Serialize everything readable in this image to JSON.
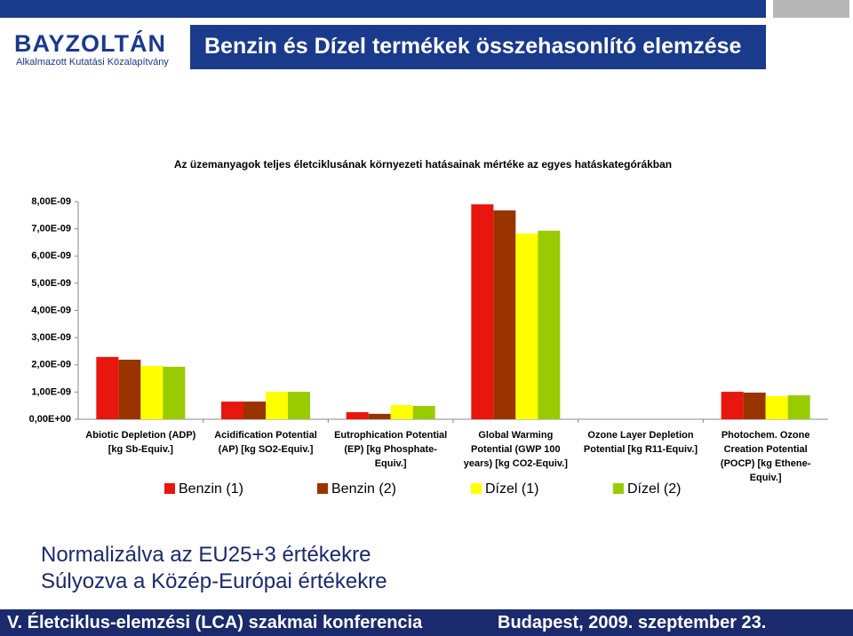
{
  "header": {
    "logo": "BAYZOLTÁN",
    "logo_subtitle": "Alkalmazott Kutatási Közalapítvány",
    "title": "Benzin és Dízel termékek összehasonlító elemzése"
  },
  "chart_data": {
    "type": "bar",
    "title": "Az üzemanyagok teljes életciklusának környezeti hatásainak mértéke az egyes hatáskategórákban",
    "categories": [
      "Abiotic Depletion (ADP) [kg Sb-Equiv.]",
      "Acidification Potential (AP) [kg SO2-Equiv.]",
      "Eutrophication Potential (EP) [kg Phosphate-Equiv.]",
      "Global Warming Potential (GWP 100 years) [kg CO2-Equiv.]",
      "Ozone Layer Depletion Potential [kg R11-Equiv.]",
      "Photochem. Ozone Creation Potential (POCP) [kg Ethene-Equiv.]"
    ],
    "series": [
      {
        "name": "Benzin (1)",
        "color": "#e8160f",
        "values": [
          2.29e-09,
          6.5e-10,
          2.6e-10,
          7.9e-09,
          0,
          1.01e-09
        ]
      },
      {
        "name": "Benzin (2)",
        "color": "#993300",
        "values": [
          2.19e-09,
          6.5e-10,
          2e-10,
          7.68e-09,
          0,
          9.8e-10
        ]
      },
      {
        "name": "Dízel (1)",
        "color": "#ffff00",
        "values": [
          1.96e-09,
          1.01e-09,
          5.2e-10,
          6.83e-09,
          0,
          8.5e-10
        ]
      },
      {
        "name": "Dízel (2)",
        "color": "#99cc00",
        "values": [
          1.93e-09,
          1.01e-09,
          4.9e-10,
          6.93e-09,
          0,
          8.8e-10
        ]
      }
    ],
    "ylim": [
      0,
      8e-09
    ],
    "yticks": [
      {
        "value": 0,
        "label": "0,00E+00"
      },
      {
        "value": 1e-09,
        "label": "1,00E-09"
      },
      {
        "value": 2e-09,
        "label": "2,00E-09"
      },
      {
        "value": 3e-09,
        "label": "3,00E-09"
      },
      {
        "value": 4e-09,
        "label": "4,00E-09"
      },
      {
        "value": 5e-09,
        "label": "5,00E-09"
      },
      {
        "value": 6e-09,
        "label": "6,00E-09"
      },
      {
        "value": 7e-09,
        "label": "7,00E-09"
      },
      {
        "value": 8e-09,
        "label": "8,00E-09"
      }
    ],
    "grid": false,
    "legend": "bottom"
  },
  "notes": [
    "Normalizálva az EU25+3 értékekre",
    "Súlyozva a Közép-Európai értékekre"
  ],
  "footer": {
    "left": "V. Életciklus-elemzési (LCA) szakmai konferencia",
    "right": "Budapest, 2009. szeptember 23."
  }
}
